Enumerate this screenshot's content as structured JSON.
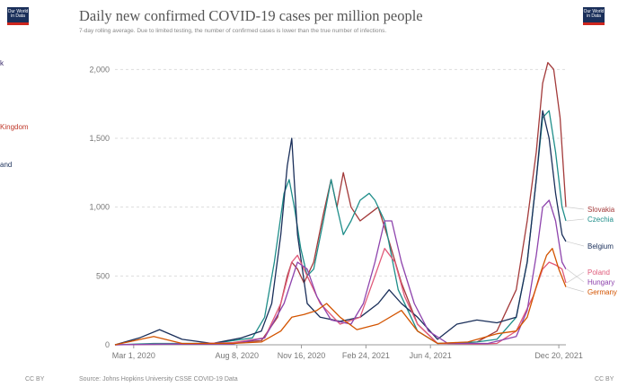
{
  "logo": {
    "line1": "Our World",
    "line2": "in Data"
  },
  "title": "Daily new confirmed COVID-19 cases per million people",
  "subtitle": "7-day rolling average. Due to limited testing, the number of confirmed cases is lower than the true number of infections.",
  "left_panel": [
    {
      "text": "k",
      "color": "#3a2c6b"
    },
    {
      "text": "Kingdom",
      "color": "#c0392b"
    },
    {
      "text": "and",
      "color": "#1a2f5a"
    }
  ],
  "footer": {
    "license_left": "CC BY",
    "source": "Source: Johns Hopkins University CSSE COVID-19 Data",
    "license_right": "CC BY"
  },
  "chart_data": {
    "type": "line",
    "title": "Daily new confirmed COVID-19 cases per million people",
    "ylim": [
      0,
      2100
    ],
    "yticks": [
      0,
      500,
      1000,
      1500,
      2000
    ],
    "ytick_labels": [
      "0",
      "500",
      "1,000",
      "1,500",
      "2,000"
    ],
    "xlim": [
      "2020-02-01",
      "2021-12-31"
    ],
    "xticks": [
      "2020-03-01",
      "2020-08-08",
      "2020-11-16",
      "2021-02-24",
      "2021-06-04",
      "2021-12-20"
    ],
    "xtick_labels": [
      "Mar 1, 2020",
      "Aug 8, 2020",
      "Nov 16, 2020",
      "Feb 24, 2021",
      "Jun 4, 2021",
      "Dec 20, 2021"
    ],
    "grid": "horizontal dashed",
    "series": [
      {
        "name": "Slovakia",
        "color": "#a33a3a",
        "x": [
          "2020-02-01",
          "2020-04-01",
          "2020-07-01",
          "2020-09-15",
          "2020-10-10",
          "2020-10-25",
          "2020-11-01",
          "2020-11-10",
          "2020-11-20",
          "2020-12-05",
          "2020-12-20",
          "2021-01-01",
          "2021-01-10",
          "2021-01-20",
          "2021-02-01",
          "2021-02-15",
          "2021-03-01",
          "2021-03-15",
          "2021-04-01",
          "2021-04-20",
          "2021-05-15",
          "2021-06-15",
          "2021-07-15",
          "2021-08-15",
          "2021-09-15",
          "2021-10-15",
          "2021-11-01",
          "2021-11-15",
          "2021-11-25",
          "2021-12-03",
          "2021-12-12",
          "2021-12-22",
          "2021-12-31"
        ],
        "y": [
          0,
          5,
          5,
          30,
          200,
          500,
          600,
          550,
          450,
          600,
          950,
          1200,
          1000,
          1250,
          1000,
          900,
          950,
          1000,
          750,
          450,
          150,
          10,
          10,
          20,
          100,
          400,
          900,
          1400,
          1900,
          2050,
          2000,
          1650,
          1000
        ]
      },
      {
        "name": "Czechia",
        "color": "#1f8e8a",
        "x": [
          "2020-02-01",
          "2020-04-01",
          "2020-07-01",
          "2020-09-01",
          "2020-09-20",
          "2020-10-05",
          "2020-10-20",
          "2020-10-28",
          "2020-11-05",
          "2020-11-15",
          "2020-11-25",
          "2020-12-05",
          "2020-12-20",
          "2021-01-01",
          "2021-01-10",
          "2021-01-20",
          "2021-02-01",
          "2021-02-15",
          "2021-03-01",
          "2021-03-10",
          "2021-03-25",
          "2021-04-15",
          "2021-05-15",
          "2021-06-15",
          "2021-07-15",
          "2021-08-15",
          "2021-09-15",
          "2021-10-15",
          "2021-11-01",
          "2021-11-15",
          "2021-11-25",
          "2021-12-05",
          "2021-12-15",
          "2021-12-25",
          "2021-12-31"
        ],
        "y": [
          0,
          10,
          10,
          50,
          200,
          600,
          1100,
          1200,
          1000,
          700,
          500,
          550,
          900,
          1200,
          1000,
          800,
          900,
          1050,
          1100,
          1050,
          900,
          400,
          100,
          10,
          15,
          20,
          40,
          200,
          600,
          1200,
          1650,
          1700,
          1400,
          1000,
          900
        ]
      },
      {
        "name": "Belgium",
        "color": "#1a2f5a",
        "x": [
          "2020-02-01",
          "2020-03-10",
          "2020-04-10",
          "2020-05-15",
          "2020-07-01",
          "2020-08-15",
          "2020-09-15",
          "2020-10-01",
          "2020-10-15",
          "2020-10-25",
          "2020-11-01",
          "2020-11-10",
          "2020-11-25",
          "2020-12-15",
          "2021-01-15",
          "2021-02-15",
          "2021-03-15",
          "2021-04-01",
          "2021-04-20",
          "2021-05-15",
          "2021-06-15",
          "2021-07-15",
          "2021-08-15",
          "2021-09-15",
          "2021-10-15",
          "2021-11-01",
          "2021-11-15",
          "2021-11-25",
          "2021-12-05",
          "2021-12-15",
          "2021-12-25",
          "2021-12-31"
        ],
        "y": [
          0,
          50,
          110,
          40,
          10,
          50,
          100,
          300,
          800,
          1300,
          1500,
          800,
          300,
          200,
          170,
          200,
          300,
          400,
          300,
          200,
          40,
          150,
          180,
          160,
          200,
          600,
          1200,
          1700,
          1500,
          1100,
          800,
          750
        ]
      },
      {
        "name": "Poland",
        "color": "#e05a7a",
        "x": [
          "2020-02-01",
          "2020-05-01",
          "2020-08-01",
          "2020-09-20",
          "2020-10-15",
          "2020-11-01",
          "2020-11-10",
          "2020-11-25",
          "2020-12-15",
          "2021-01-15",
          "2021-02-15",
          "2021-03-10",
          "2021-03-25",
          "2021-04-10",
          "2021-04-25",
          "2021-05-15",
          "2021-06-15",
          "2021-08-15",
          "2021-09-15",
          "2021-10-15",
          "2021-11-10",
          "2021-11-25",
          "2021-12-05",
          "2021-12-15",
          "2021-12-25",
          "2021-12-31"
        ],
        "y": [
          0,
          5,
          15,
          50,
          300,
          600,
          650,
          500,
          300,
          150,
          200,
          500,
          700,
          600,
          350,
          150,
          10,
          5,
          10,
          100,
          350,
          550,
          600,
          580,
          550,
          450
        ]
      },
      {
        "name": "Hungary",
        "color": "#8e44ad",
        "x": [
          "2020-02-01",
          "2020-05-01",
          "2020-08-01",
          "2020-09-20",
          "2020-10-20",
          "2020-11-10",
          "2020-11-25",
          "2020-12-10",
          "2021-01-01",
          "2021-02-01",
          "2021-02-20",
          "2021-03-10",
          "2021-03-25",
          "2021-04-05",
          "2021-04-20",
          "2021-05-10",
          "2021-06-01",
          "2021-07-01",
          "2021-09-01",
          "2021-10-15",
          "2021-11-01",
          "2021-11-15",
          "2021-11-25",
          "2021-12-05",
          "2021-12-15",
          "2021-12-25",
          "2021-12-31"
        ],
        "y": [
          0,
          5,
          5,
          50,
          300,
          600,
          550,
          350,
          180,
          150,
          300,
          600,
          900,
          900,
          600,
          300,
          100,
          10,
          10,
          60,
          250,
          650,
          1000,
          1050,
          900,
          600,
          550
        ]
      },
      {
        "name": "Germany",
        "color": "#d35400",
        "x": [
          "2020-02-01",
          "2020-04-01",
          "2020-05-15",
          "2020-08-01",
          "2020-09-15",
          "2020-10-15",
          "2020-11-01",
          "2020-11-20",
          "2020-12-10",
          "2020-12-25",
          "2021-01-15",
          "2021-02-10",
          "2021-03-15",
          "2021-04-20",
          "2021-05-15",
          "2021-06-15",
          "2021-08-01",
          "2021-09-15",
          "2021-10-15",
          "2021-11-01",
          "2021-11-20",
          "2021-12-01",
          "2021-12-10",
          "2021-12-20",
          "2021-12-31"
        ],
        "y": [
          0,
          60,
          10,
          10,
          20,
          100,
          200,
          220,
          250,
          300,
          200,
          110,
          150,
          250,
          100,
          10,
          20,
          80,
          100,
          200,
          500,
          650,
          700,
          550,
          420
        ]
      }
    ]
  }
}
